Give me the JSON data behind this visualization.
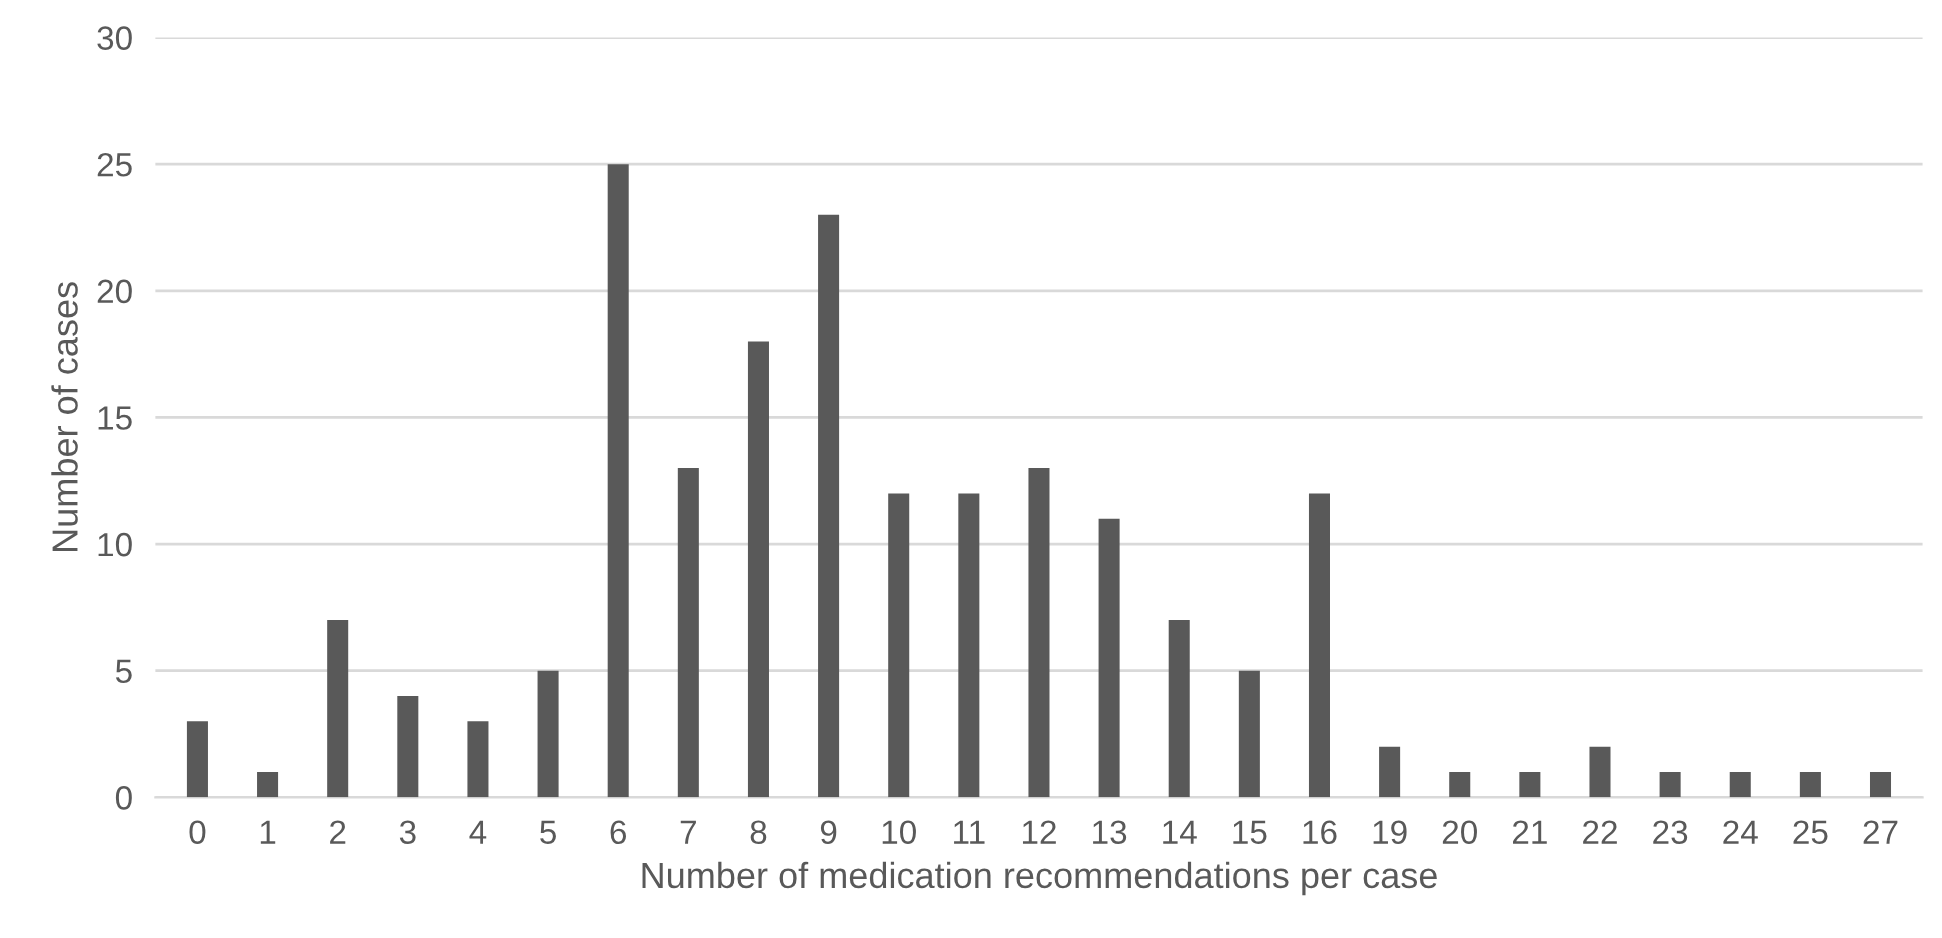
{
  "chart_data": {
    "type": "bar",
    "xlabel": "Number of medication recommendations per case",
    "ylabel": "Number of cases",
    "categories": [
      "0",
      "1",
      "2",
      "3",
      "4",
      "5",
      "6",
      "7",
      "8",
      "9",
      "10",
      "11",
      "12",
      "13",
      "14",
      "15",
      "16",
      "19",
      "20",
      "21",
      "22",
      "23",
      "24",
      "25",
      "27"
    ],
    "values": [
      3,
      1,
      7,
      4,
      3,
      5,
      25,
      13,
      18,
      23,
      12,
      12,
      13,
      11,
      7,
      5,
      12,
      2,
      1,
      1,
      2,
      1,
      1,
      1,
      1
    ],
    "color": "#595959",
    "ylim": [
      0,
      30
    ],
    "yticks": [
      0,
      5,
      10,
      15,
      20,
      25,
      30
    ],
    "grid": "y"
  }
}
